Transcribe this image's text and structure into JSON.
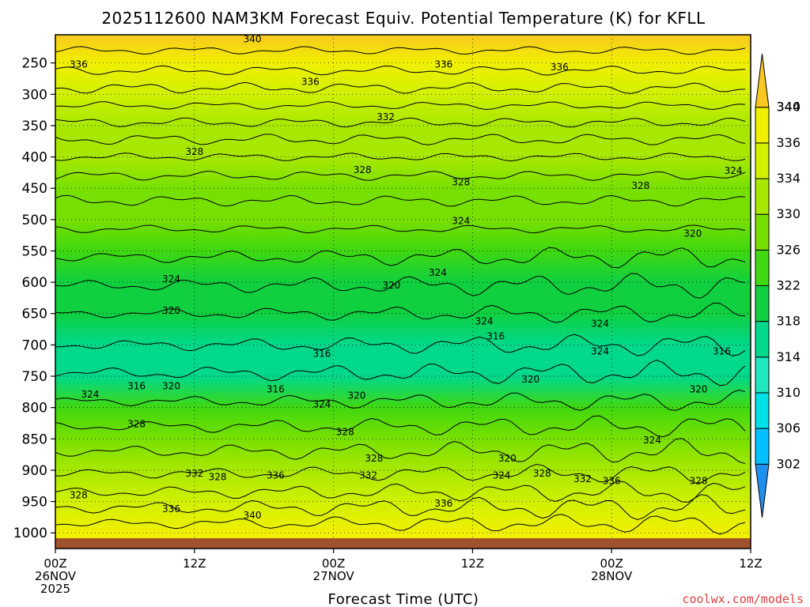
{
  "chart_data": {
    "type": "heatmap",
    "title": "2025112600 NAM3KM Forecast Equiv. Potential Temperature (K) for KFLL",
    "xlabel": "Forecast Time (UTC)",
    "ylabel": "",
    "units": "K",
    "xlim_hours": [
      0,
      60
    ],
    "ylim_hpa": [
      1025,
      205
    ],
    "y_ticks": [
      250,
      300,
      350,
      400,
      450,
      500,
      550,
      600,
      650,
      700,
      750,
      800,
      850,
      900,
      950,
      1000
    ],
    "x_ticks": [
      {
        "hour": 0,
        "lines": [
          "00Z",
          "26NOV",
          "2025"
        ]
      },
      {
        "hour": 12,
        "lines": [
          "12Z"
        ]
      },
      {
        "hour": 24,
        "lines": [
          "00Z",
          "27NOV"
        ]
      },
      {
        "hour": 36,
        "lines": [
          "12Z"
        ]
      },
      {
        "hour": 48,
        "lines": [
          "00Z",
          "28NOV"
        ]
      },
      {
        "hour": 60,
        "lines": [
          "12Z"
        ]
      }
    ],
    "colorbar": {
      "levels": [
        302,
        306,
        310,
        314,
        318,
        322,
        326,
        330,
        334,
        336,
        340,
        344
      ],
      "colors": [
        "#1e90f0",
        "#00c0ff",
        "#00e0e8",
        "#20e8c0",
        "#00d88c",
        "#10d040",
        "#40d810",
        "#78e000",
        "#a8e800",
        "#d0f000",
        "#f0f000",
        "#f8c820"
      ]
    },
    "profile": {
      "pressure": [
        205,
        250,
        300,
        350,
        400,
        450,
        500,
        550,
        600,
        650,
        700,
        750,
        800,
        850,
        900,
        950,
        1000,
        1025
      ],
      "theta_e": [
        341,
        337,
        335,
        332,
        330,
        328,
        326,
        323,
        321,
        319,
        317,
        315,
        323,
        327,
        331,
        334,
        338,
        339
      ]
    },
    "contour_labels": [
      {
        "text": "340",
        "hour": 17,
        "p": 212
      },
      {
        "text": "336",
        "hour": 2,
        "p": 252
      },
      {
        "text": "336",
        "hour": 33.5,
        "p": 252
      },
      {
        "text": "336",
        "hour": 43.5,
        "p": 257
      },
      {
        "text": "336",
        "hour": 22,
        "p": 280
      },
      {
        "text": "332",
        "hour": 28.5,
        "p": 336
      },
      {
        "text": "328",
        "hour": 12,
        "p": 392
      },
      {
        "text": "328",
        "hour": 26.5,
        "p": 421
      },
      {
        "text": "328",
        "hour": 35,
        "p": 440
      },
      {
        "text": "328",
        "hour": 50.5,
        "p": 446
      },
      {
        "text": "324",
        "hour": 58.5,
        "p": 422
      },
      {
        "text": "324",
        "hour": 35,
        "p": 502
      },
      {
        "text": "320",
        "hour": 55,
        "p": 522
      },
      {
        "text": "324",
        "hour": 10,
        "p": 595
      },
      {
        "text": "324",
        "hour": 33,
        "p": 585
      },
      {
        "text": "320",
        "hour": 29,
        "p": 605
      },
      {
        "text": "320",
        "hour": 10,
        "p": 645
      },
      {
        "text": "324",
        "hour": 37,
        "p": 662
      },
      {
        "text": "316",
        "hour": 38,
        "p": 686
      },
      {
        "text": "324",
        "hour": 47,
        "p": 666
      },
      {
        "text": "324",
        "hour": 47,
        "p": 710
      },
      {
        "text": "316",
        "hour": 23,
        "p": 714
      },
      {
        "text": "316",
        "hour": 57.5,
        "p": 710
      },
      {
        "text": "320",
        "hour": 41,
        "p": 755
      },
      {
        "text": "324",
        "hour": 3,
        "p": 779
      },
      {
        "text": "316",
        "hour": 7,
        "p": 766
      },
      {
        "text": "320",
        "hour": 10,
        "p": 766
      },
      {
        "text": "316",
        "hour": 19,
        "p": 771
      },
      {
        "text": "320",
        "hour": 26,
        "p": 781
      },
      {
        "text": "324",
        "hour": 23,
        "p": 795
      },
      {
        "text": "320",
        "hour": 55.5,
        "p": 771
      },
      {
        "text": "328",
        "hour": 7,
        "p": 826
      },
      {
        "text": "328",
        "hour": 25,
        "p": 839
      },
      {
        "text": "324",
        "hour": 51.5,
        "p": 852
      },
      {
        "text": "328",
        "hour": 27.5,
        "p": 881
      },
      {
        "text": "320",
        "hour": 39,
        "p": 881
      },
      {
        "text": "332",
        "hour": 12,
        "p": 905
      },
      {
        "text": "328",
        "hour": 14,
        "p": 911
      },
      {
        "text": "336",
        "hour": 19,
        "p": 908
      },
      {
        "text": "332",
        "hour": 27,
        "p": 908
      },
      {
        "text": "324",
        "hour": 38.5,
        "p": 908
      },
      {
        "text": "328",
        "hour": 42,
        "p": 905
      },
      {
        "text": "332",
        "hour": 45.5,
        "p": 914
      },
      {
        "text": "336",
        "hour": 48,
        "p": 917
      },
      {
        "text": "328",
        "hour": 55.5,
        "p": 917
      },
      {
        "text": "328",
        "hour": 2,
        "p": 940
      },
      {
        "text": "336",
        "hour": 33.5,
        "p": 953
      },
      {
        "text": "336",
        "hour": 10,
        "p": 962
      },
      {
        "text": "340",
        "hour": 17,
        "p": 972
      }
    ]
  },
  "credit": "coolwx.com/models"
}
